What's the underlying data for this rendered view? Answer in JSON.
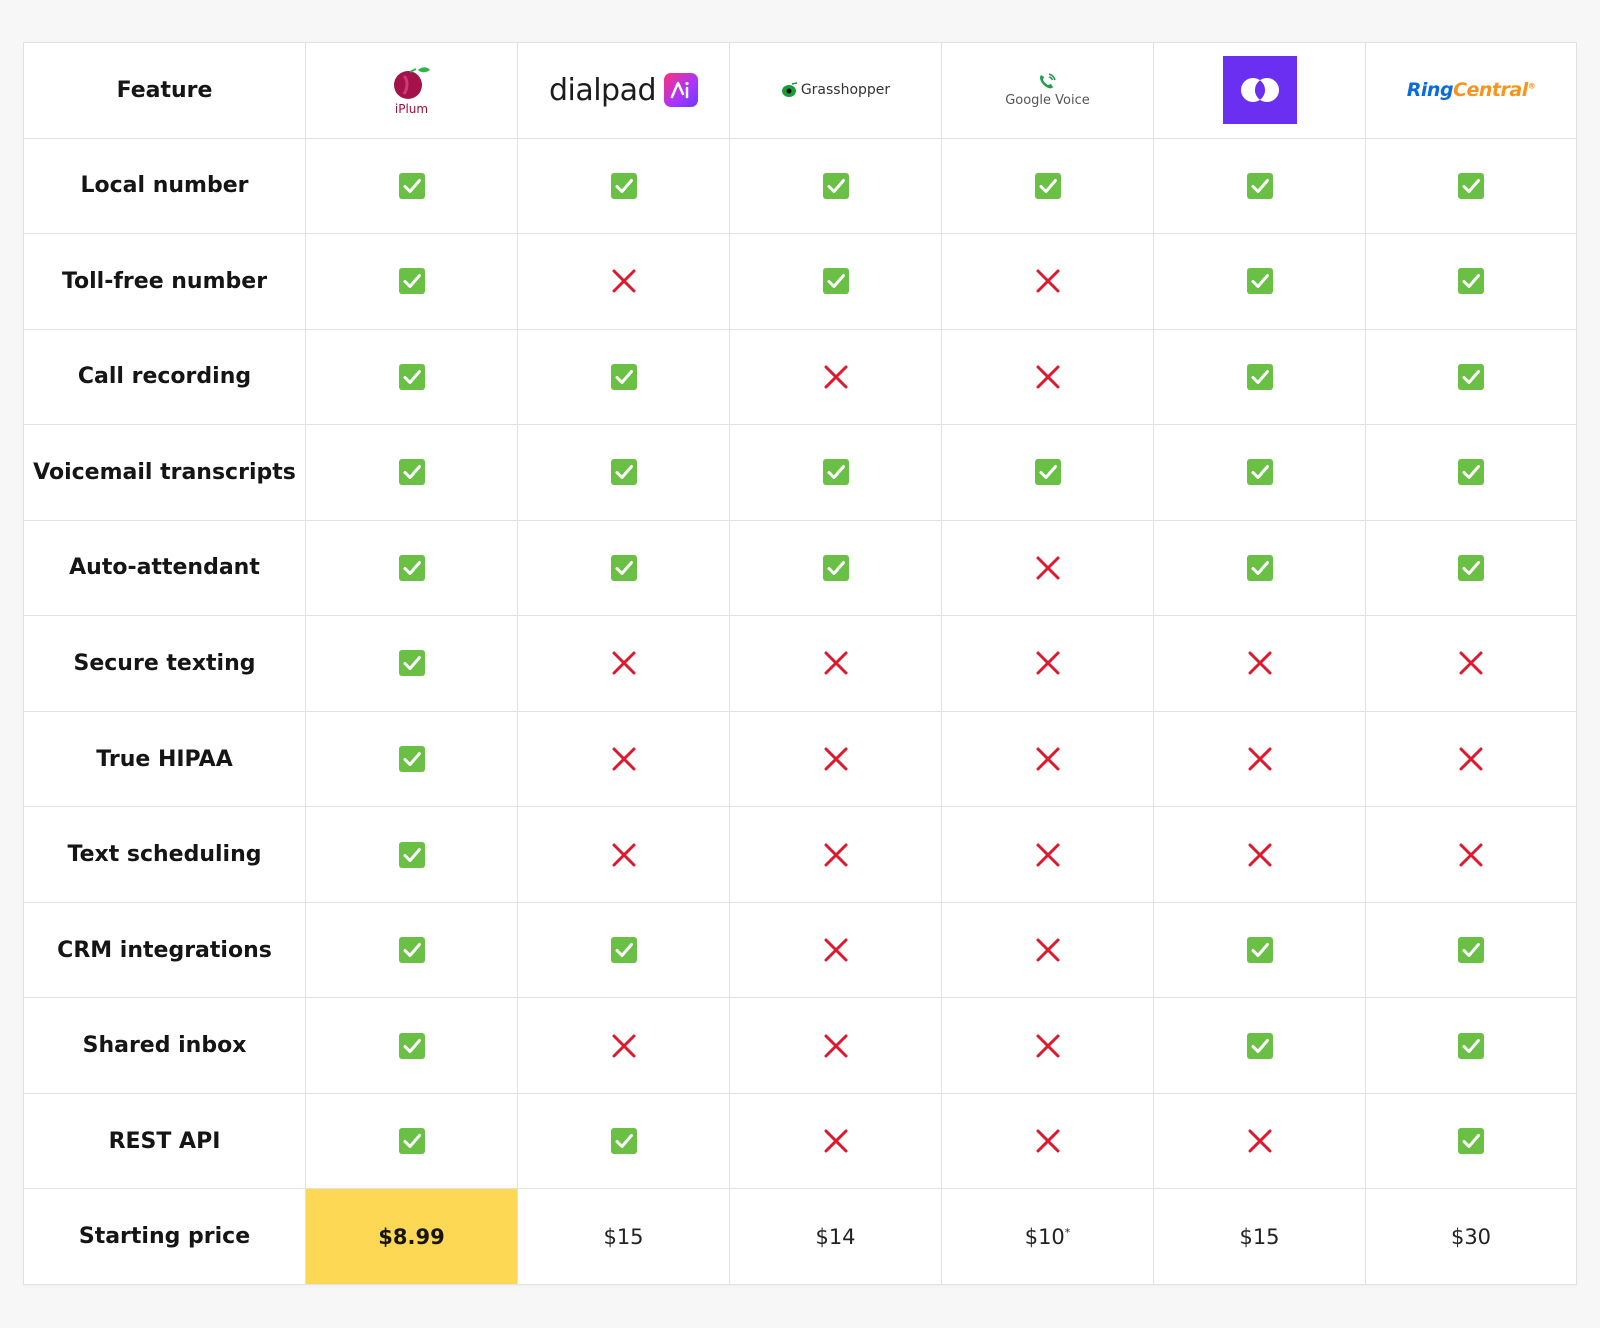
{
  "table": {
    "header": {
      "feature": "Feature",
      "providers": [
        {
          "key": "iplum",
          "logo_text": "iPlum"
        },
        {
          "key": "dialpad",
          "logo_text": "dialpad"
        },
        {
          "key": "grasshopper",
          "logo_text": "Grasshopper"
        },
        {
          "key": "google-voice",
          "logo_text": "Google Voice"
        },
        {
          "key": "openphone",
          "logo_text": ""
        },
        {
          "key": "ringcentral",
          "logo_text_a": "Ring",
          "logo_text_b": "Central",
          "trademark": "®"
        }
      ]
    },
    "rows": [
      {
        "feature": "Local number",
        "values": [
          true,
          true,
          true,
          true,
          true,
          true
        ]
      },
      {
        "feature": "Toll-free number",
        "values": [
          true,
          false,
          true,
          false,
          true,
          true
        ]
      },
      {
        "feature": "Call recording",
        "values": [
          true,
          true,
          false,
          false,
          true,
          true
        ]
      },
      {
        "feature": "Voicemail transcripts",
        "values": [
          true,
          true,
          true,
          true,
          true,
          true
        ]
      },
      {
        "feature": "Auto-attendant",
        "values": [
          true,
          true,
          true,
          false,
          true,
          true
        ]
      },
      {
        "feature": "Secure texting",
        "values": [
          true,
          false,
          false,
          false,
          false,
          false
        ]
      },
      {
        "feature": "True HIPAA",
        "values": [
          true,
          false,
          false,
          false,
          false,
          false
        ]
      },
      {
        "feature": "Text scheduling",
        "values": [
          true,
          false,
          false,
          false,
          false,
          false
        ]
      },
      {
        "feature": "CRM integrations",
        "values": [
          true,
          true,
          false,
          false,
          true,
          true
        ]
      },
      {
        "feature": "Shared inbox",
        "values": [
          true,
          false,
          false,
          false,
          true,
          true
        ]
      },
      {
        "feature": "REST API",
        "values": [
          true,
          true,
          false,
          false,
          false,
          true
        ]
      }
    ],
    "price_row": {
      "label": "Starting price",
      "values": [
        "$8.99",
        "$15",
        "$14",
        "$10",
        "$15",
        "$30"
      ],
      "footnote": "*",
      "footnote_index": 3,
      "highlight_index": 0
    }
  },
  "colors": {
    "check_bg": "#6abf45",
    "cross": "#e0182d",
    "highlight": "#fcd854",
    "grid_line": "#e2e2e2"
  }
}
